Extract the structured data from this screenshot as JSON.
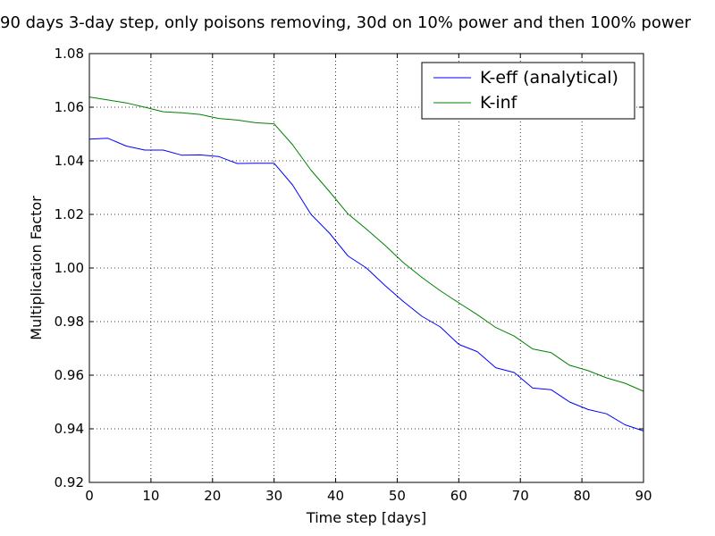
{
  "chart_data": {
    "type": "line",
    "title": "90 days 3-day step, only poisons removing, 30d on 10% power and then 100% power",
    "xlabel": "Time step [days]",
    "ylabel": "Multiplication Factor",
    "xlim": [
      0,
      90
    ],
    "ylim": [
      0.92,
      1.08
    ],
    "xticks": [
      0,
      10,
      20,
      30,
      40,
      50,
      60,
      70,
      80,
      90
    ],
    "yticks": [
      0.92,
      0.94,
      0.96,
      0.98,
      1.0,
      1.02,
      1.04,
      1.06,
      1.08
    ],
    "xtick_labels": [
      "0",
      "10",
      "20",
      "30",
      "40",
      "50",
      "60",
      "70",
      "80",
      "90"
    ],
    "ytick_labels": [
      "0.92",
      "0.94",
      "0.96",
      "0.98",
      "1.00",
      "1.02",
      "1.04",
      "1.06",
      "1.08"
    ],
    "grid": true,
    "legend_position": "top-right",
    "x": [
      0,
      3,
      6,
      9,
      12,
      15,
      18,
      21,
      24,
      27,
      30,
      33,
      36,
      39,
      42,
      45,
      48,
      51,
      54,
      57,
      60,
      63,
      66,
      69,
      72,
      75,
      78,
      81,
      84,
      87,
      90
    ],
    "series": [
      {
        "name": "K-eff (analytical)",
        "color": "#0000ff",
        "values": [
          1.0481,
          1.0484,
          1.0455,
          1.044,
          1.044,
          1.0421,
          1.0422,
          1.0416,
          1.039,
          1.0391,
          1.0391,
          1.031,
          1.02,
          1.013,
          1.0045,
          1.0,
          0.9935,
          0.9875,
          0.982,
          0.978,
          0.9715,
          0.9688,
          0.9628,
          0.961,
          0.9552,
          0.9546,
          0.95,
          0.9472,
          0.9456,
          0.9415,
          0.9392
        ]
      },
      {
        "name": "K-inf",
        "color": "#008000",
        "values": [
          1.0638,
          1.0627,
          1.0616,
          1.06,
          1.0583,
          1.0579,
          1.0573,
          1.0558,
          1.0552,
          1.0542,
          1.0538,
          1.046,
          1.0365,
          1.0285,
          1.0202,
          1.0145,
          1.0085,
          1.002,
          0.9965,
          0.9915,
          0.987,
          0.9826,
          0.9778,
          0.9746,
          0.9698,
          0.9684,
          0.9637,
          0.9617,
          0.959,
          0.957,
          0.954
        ]
      }
    ]
  }
}
